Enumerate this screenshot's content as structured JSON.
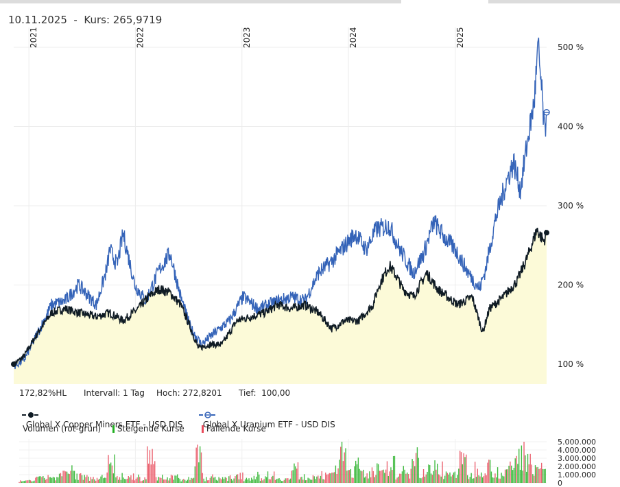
{
  "header": {
    "title": "10.11.2025  -  Kurs: 265,9719"
  },
  "stats": {
    "hl": "172,82%HL",
    "interval": "Intervall: 1 Tag",
    "high": "Hoch: 272,8201",
    "low": "Tief:  100,00"
  },
  "colors": {
    "copper": "#0f1b24",
    "uranium": "#3463b8",
    "fill": "#fcfad8",
    "up": "#22b022",
    "down": "#e84a5a",
    "grid": "#ececec"
  },
  "volume": {
    "title": "Volumen (rot-grün)",
    "up_label": "Steigende Kurse",
    "down_label": "Fallende Kurse",
    "ticks": [
      "5.000.000",
      "4.000.000",
      "3.000.000",
      "2.000.000",
      "1.000.000",
      "0"
    ],
    "values": [
      0.3,
      0.5,
      0.8,
      1.2,
      0.9,
      1.5,
      2.1,
      1.3,
      1.0,
      0.8,
      1.4,
      3.5,
      1.2,
      0.9,
      1.1,
      0.7,
      4.8,
      1.0,
      0.8,
      1.2,
      0.6,
      0.9,
      4.6,
      0.8,
      1.1,
      0.7,
      0.9,
      1.6,
      0.8,
      1.3,
      1.0,
      1.5,
      0.9,
      0.7,
      2.5,
      1.1,
      0.9,
      1.8,
      1.2,
      2.8,
      5.0,
      2.2,
      3.0,
      1.8,
      2.5,
      1.6,
      3.2,
      1.5,
      2.0,
      5.0,
      1.8,
      2.3,
      2.8,
      1.5,
      1.9,
      3.8,
      1.4,
      2.7,
      3.0,
      2.2,
      1.6,
      2.8,
      4.8,
      5.2,
      3.1,
      2.4
    ]
  },
  "chart_data": {
    "type": "line",
    "title": "",
    "xlabel": "",
    "ylabel": "",
    "x_ticks": [
      "2021",
      "2022",
      "2023",
      "2024",
      "2025"
    ],
    "y_ticks": [
      "100 %",
      "200 %",
      "300 %",
      "400 %",
      "500 %"
    ],
    "ylim": [
      85,
      520
    ],
    "xlim": [
      "2020-11-10",
      "2025-11-10"
    ],
    "grid": true,
    "legend": "bottom",
    "series": [
      {
        "name": "Global X Copper Miners ETF - USD DIS",
        "style": "filled",
        "points": [
          [
            "2020-11-10",
            100
          ],
          [
            "2020-12-15",
            110
          ],
          [
            "2021-02-01",
            140
          ],
          [
            "2021-03-20",
            165
          ],
          [
            "2021-05-05",
            170
          ],
          [
            "2021-06-20",
            165
          ],
          [
            "2021-08-20",
            160
          ],
          [
            "2021-10-05",
            165
          ],
          [
            "2021-11-20",
            155
          ],
          [
            "2022-01-10",
            170
          ],
          [
            "2022-02-15",
            185
          ],
          [
            "2022-03-25",
            195
          ],
          [
            "2022-04-30",
            190
          ],
          [
            "2022-06-05",
            175
          ],
          [
            "2022-07-10",
            145
          ],
          [
            "2022-08-05",
            120
          ],
          [
            "2022-09-10",
            125
          ],
          [
            "2022-10-25",
            125
          ],
          [
            "2022-12-15",
            155
          ],
          [
            "2023-02-01",
            160
          ],
          [
            "2023-03-20",
            165
          ],
          [
            "2023-05-05",
            175
          ],
          [
            "2023-06-20",
            170
          ],
          [
            "2023-08-05",
            175
          ],
          [
            "2023-09-20",
            165
          ],
          [
            "2023-11-05",
            145
          ],
          [
            "2023-12-20",
            155
          ],
          [
            "2024-02-05",
            155
          ],
          [
            "2024-03-25",
            175
          ],
          [
            "2024-04-15",
            200
          ],
          [
            "2024-05-20",
            225
          ],
          [
            "2024-06-15",
            210
          ],
          [
            "2024-07-05",
            195
          ],
          [
            "2024-08-10",
            185
          ],
          [
            "2024-09-25",
            215
          ],
          [
            "2024-11-01",
            195
          ],
          [
            "2024-12-05",
            185
          ],
          [
            "2025-01-10",
            175
          ],
          [
            "2025-02-28",
            185
          ],
          [
            "2025-04-05",
            140
          ],
          [
            "2025-04-28",
            170
          ],
          [
            "2025-06-15",
            185
          ],
          [
            "2025-08-01",
            205
          ],
          [
            "2025-09-05",
            235
          ],
          [
            "2025-10-08",
            270
          ],
          [
            "2025-10-31",
            255
          ],
          [
            "2025-11-10",
            266
          ]
        ]
      },
      {
        "name": "Global X Uranium ETF - USD DIS",
        "style": "line",
        "points": [
          [
            "2020-11-10",
            97
          ],
          [
            "2020-12-15",
            105
          ],
          [
            "2021-02-01",
            140
          ],
          [
            "2021-03-20",
            175
          ],
          [
            "2021-05-05",
            180
          ],
          [
            "2021-06-20",
            200
          ],
          [
            "2021-08-20",
            175
          ],
          [
            "2021-09-25",
            220
          ],
          [
            "2021-10-05",
            245
          ],
          [
            "2021-10-30",
            225
          ],
          [
            "2021-11-20",
            265
          ],
          [
            "2021-12-30",
            200
          ],
          [
            "2022-02-05",
            180
          ],
          [
            "2022-03-25",
            220
          ],
          [
            "2022-04-30",
            240
          ],
          [
            "2022-06-05",
            185
          ],
          [
            "2022-07-10",
            145
          ],
          [
            "2022-08-15",
            125
          ],
          [
            "2022-10-01",
            140
          ],
          [
            "2022-11-20",
            155
          ],
          [
            "2023-01-05",
            185
          ],
          [
            "2023-02-25",
            170
          ],
          [
            "2023-04-01",
            175
          ],
          [
            "2023-05-05",
            180
          ],
          [
            "2023-06-20",
            185
          ],
          [
            "2023-08-05",
            180
          ],
          [
            "2023-09-20",
            215
          ],
          [
            "2023-11-05",
            230
          ],
          [
            "2023-12-20",
            250
          ],
          [
            "2024-01-25",
            265
          ],
          [
            "2024-03-01",
            245
          ],
          [
            "2024-04-05",
            270
          ],
          [
            "2024-05-20",
            275
          ],
          [
            "2024-06-25",
            245
          ],
          [
            "2024-08-10",
            215
          ],
          [
            "2024-09-15",
            240
          ],
          [
            "2024-10-20",
            280
          ],
          [
            "2024-11-25",
            260
          ],
          [
            "2025-01-01",
            245
          ],
          [
            "2025-02-15",
            215
          ],
          [
            "2025-03-25",
            195
          ],
          [
            "2025-04-15",
            220
          ],
          [
            "2025-05-20",
            285
          ],
          [
            "2025-06-25",
            330
          ],
          [
            "2025-07-20",
            355
          ],
          [
            "2025-08-12",
            320
          ],
          [
            "2025-09-05",
            380
          ],
          [
            "2025-09-28",
            430
          ],
          [
            "2025-10-12",
            500
          ],
          [
            "2025-10-25",
            440
          ],
          [
            "2025-11-03",
            390
          ],
          [
            "2025-11-10",
            418
          ]
        ]
      }
    ]
  }
}
